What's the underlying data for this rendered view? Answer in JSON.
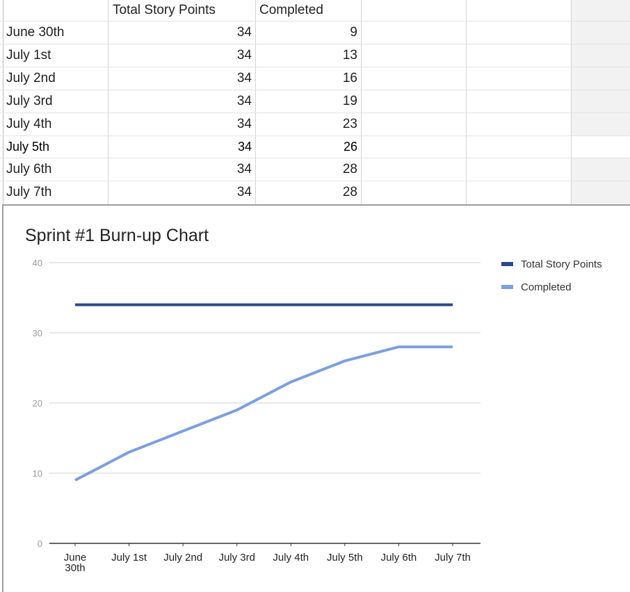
{
  "sheet": {
    "headers": [
      "",
      "Total Story Points",
      "Completed"
    ],
    "rows": [
      {
        "date": "June 30th",
        "total": "34",
        "completed": "9"
      },
      {
        "date": "July 1st",
        "total": "34",
        "completed": "13"
      },
      {
        "date": "July 2nd",
        "total": "34",
        "completed": "16"
      },
      {
        "date": "July 3rd",
        "total": "34",
        "completed": "19"
      },
      {
        "date": "July 4th",
        "total": "34",
        "completed": "23"
      },
      {
        "date": "July 5th",
        "total": "34",
        "completed": "26"
      },
      {
        "date": "July 6th",
        "total": "34",
        "completed": "28"
      },
      {
        "date": "July 7th",
        "total": "34",
        "completed": "28"
      }
    ]
  },
  "chart_data": {
    "type": "line",
    "title": "Sprint #1 Burn-up Chart",
    "categories": [
      "June 30th",
      "July 1st",
      "July 2nd",
      "July 3rd",
      "July 4th",
      "July 5th",
      "July 6th",
      "July 7th"
    ],
    "series": [
      {
        "name": "Total Story Points",
        "values": [
          34,
          34,
          34,
          34,
          34,
          34,
          34,
          34
        ],
        "color": "#2c4a8c"
      },
      {
        "name": "Completed",
        "values": [
          9,
          13,
          16,
          19,
          23,
          26,
          28,
          28
        ],
        "color": "#7ba0e0"
      }
    ],
    "yticks": [
      0,
      10,
      20,
      30,
      40
    ],
    "ylim": [
      0,
      40
    ],
    "grid": true,
    "legend": "right",
    "xlabel": "",
    "ylabel": ""
  }
}
